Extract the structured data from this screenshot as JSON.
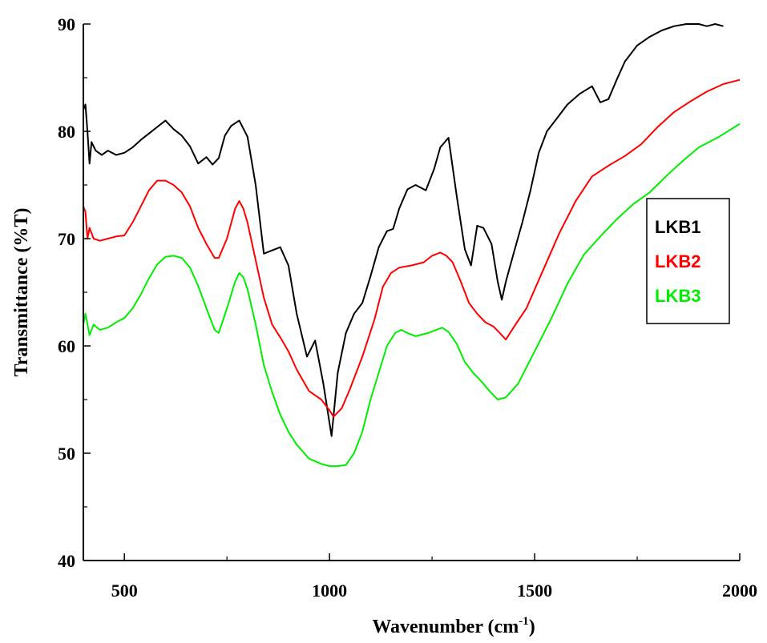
{
  "chart_data": {
    "type": "line",
    "xlabel": "Wavenumber (cm",
    "xlabel_sup": "-1",
    "xlabel_tail": ")",
    "ylabel": "Transmittance (%T)",
    "xlim": [
      400,
      2000
    ],
    "ylim": [
      40,
      90
    ],
    "x_ticks": [
      500,
      1000,
      1500,
      2000
    ],
    "y_ticks": [
      40,
      50,
      60,
      70,
      80,
      90
    ],
    "grid": false,
    "legend_position": "right",
    "series": [
      {
        "name": "LKB1",
        "color": "#000000",
        "x": [
          400,
          405,
          410,
          415,
          420,
          430,
          445,
          460,
          480,
          500,
          520,
          540,
          560,
          580,
          600,
          620,
          640,
          660,
          680,
          700,
          715,
          730,
          745,
          760,
          780,
          800,
          820,
          840,
          860,
          880,
          900,
          920,
          945,
          965,
          985,
          1005,
          1020,
          1040,
          1060,
          1080,
          1100,
          1120,
          1140,
          1155,
          1170,
          1190,
          1210,
          1235,
          1255,
          1270,
          1290,
          1310,
          1330,
          1345,
          1360,
          1375,
          1395,
          1410,
          1420,
          1430,
          1450,
          1470,
          1490,
          1510,
          1530,
          1550,
          1580,
          1610,
          1640,
          1660,
          1680,
          1700,
          1720,
          1750,
          1780,
          1810,
          1840,
          1870,
          1900,
          1920,
          1940,
          1960
        ],
        "y": [
          82,
          82.5,
          80,
          77,
          79,
          78.2,
          77.8,
          78.2,
          77.8,
          78,
          78.5,
          79.2,
          79.8,
          80.4,
          81,
          80.2,
          79.6,
          78.6,
          77,
          77.6,
          76.9,
          77.5,
          79.6,
          80.5,
          81,
          79.5,
          75,
          68.6,
          68.9,
          69.2,
          67.5,
          63,
          59,
          60.5,
          56.5,
          51.6,
          57.5,
          61.2,
          63,
          64,
          66.5,
          69.2,
          70.7,
          70.9,
          72.8,
          74.6,
          75,
          74.5,
          76.5,
          78.5,
          79.4,
          74,
          69,
          67.5,
          71.2,
          71,
          69.5,
          66,
          64.3,
          66,
          68.8,
          71.5,
          74.5,
          78,
          80,
          81,
          82.5,
          83.5,
          84.2,
          82.7,
          83,
          84.8,
          86.5,
          88,
          88.8,
          89.4,
          89.8,
          90,
          90,
          89.8,
          90,
          89.8
        ]
      },
      {
        "name": "LKB2",
        "color": "#ff0000",
        "x": [
          400,
          405,
          410,
          415,
          425,
          440,
          460,
          480,
          500,
          520,
          540,
          560,
          580,
          600,
          620,
          640,
          660,
          680,
          700,
          720,
          730,
          750,
          770,
          780,
          790,
          800,
          820,
          840,
          860,
          880,
          900,
          920,
          950,
          980,
          1000,
          1010,
          1030,
          1050,
          1080,
          1110,
          1130,
          1150,
          1170,
          1200,
          1230,
          1250,
          1270,
          1285,
          1300,
          1320,
          1340,
          1360,
          1380,
          1400,
          1420,
          1430,
          1450,
          1480,
          1520,
          1560,
          1600,
          1640,
          1680,
          1720,
          1760,
          1800,
          1840,
          1880,
          1920,
          1960,
          2000
        ],
        "y": [
          73,
          72.5,
          70,
          71,
          70,
          69.8,
          70,
          70.2,
          70.3,
          71.5,
          73,
          74.5,
          75.4,
          75.4,
          75,
          74.3,
          73,
          71,
          69.5,
          68.2,
          68.2,
          70,
          72.8,
          73.5,
          72.8,
          71.5,
          68,
          64.5,
          62,
          60.8,
          59.5,
          57.8,
          55.8,
          55,
          54,
          53.4,
          54.2,
          56,
          59,
          62.5,
          65.5,
          66.8,
          67.3,
          67.5,
          67.8,
          68.4,
          68.7,
          68.4,
          67.8,
          66,
          64,
          63,
          62.2,
          61.8,
          61,
          60.6,
          61.8,
          63.5,
          67,
          70.5,
          73.5,
          75.8,
          76.8,
          77.7,
          78.8,
          80.4,
          81.8,
          82.8,
          83.7,
          84.4,
          84.8
        ]
      },
      {
        "name": "LKB3",
        "color": "#00ee00",
        "x": [
          400,
          405,
          410,
          415,
          425,
          440,
          460,
          480,
          500,
          520,
          540,
          560,
          580,
          600,
          620,
          640,
          660,
          680,
          700,
          720,
          730,
          750,
          770,
          780,
          790,
          800,
          820,
          840,
          860,
          880,
          900,
          920,
          950,
          980,
          1000,
          1020,
          1040,
          1060,
          1080,
          1100,
          1120,
          1140,
          1160,
          1175,
          1190,
          1210,
          1240,
          1260,
          1275,
          1290,
          1310,
          1330,
          1350,
          1370,
          1390,
          1410,
          1430,
          1460,
          1500,
          1540,
          1580,
          1620,
          1660,
          1700,
          1740,
          1780,
          1820,
          1860,
          1900,
          1950,
          2000
        ],
        "y": [
          62,
          63,
          62,
          61,
          62,
          61.5,
          61.7,
          62.2,
          62.6,
          63.5,
          64.8,
          66.3,
          67.6,
          68.3,
          68.4,
          68.2,
          67.3,
          65.6,
          63.5,
          61.5,
          61.2,
          63.5,
          66,
          66.8,
          66.4,
          65.3,
          62,
          58.2,
          55.7,
          53.6,
          52,
          50.8,
          49.5,
          49,
          48.8,
          48.8,
          48.9,
          50,
          52,
          55,
          57.5,
          60,
          61.2,
          61.5,
          61.2,
          60.9,
          61.2,
          61.5,
          61.7,
          61.3,
          60.2,
          58.5,
          57.5,
          56.7,
          55.8,
          55,
          55.2,
          56.5,
          59.5,
          62.5,
          65.8,
          68.5,
          70.2,
          71.8,
          73.2,
          74.3,
          75.8,
          77.2,
          78.5,
          79.5,
          80.7
        ]
      }
    ]
  }
}
